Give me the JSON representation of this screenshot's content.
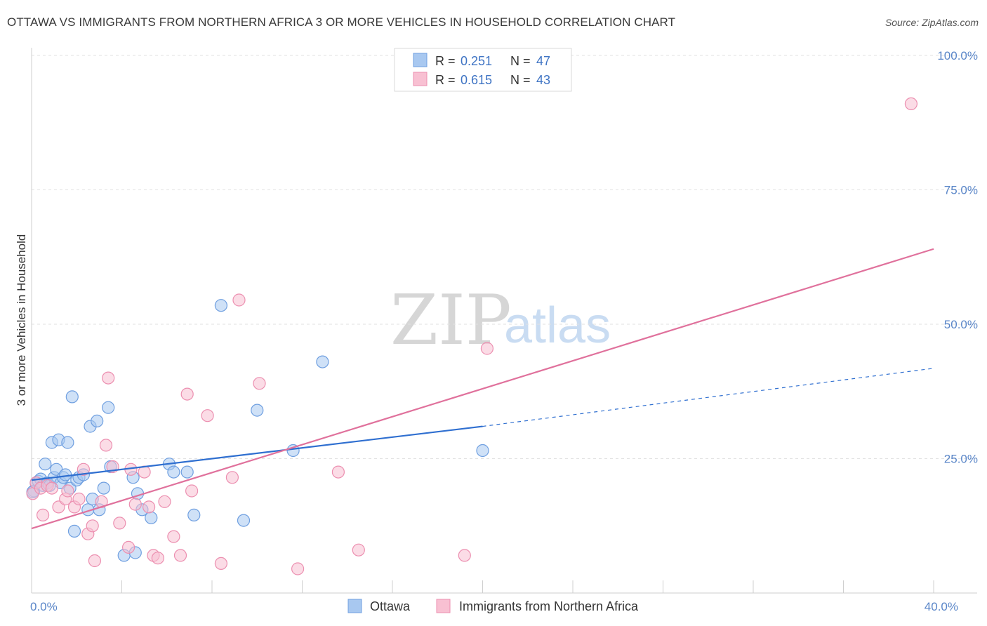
{
  "title": "OTTAWA VS IMMIGRANTS FROM NORTHERN AFRICA 3 OR MORE VEHICLES IN HOUSEHOLD CORRELATION CHART",
  "source": "Source: ZipAtlas.com",
  "watermark": {
    "zip": "ZIP",
    "atlas": "atlas"
  },
  "legend": {
    "r_label": "R =",
    "n_label": "N =",
    "items": [
      {
        "r": "0.251",
        "n": "47",
        "color": "#a8c8f0",
        "stroke": "#6f9fe0"
      },
      {
        "r": "0.615",
        "n": "43",
        "color": "#f8c0d2",
        "stroke": "#ec8fb0"
      }
    ]
  },
  "bottom_legend": [
    {
      "label": "Ottawa",
      "color": "#a8c8f0",
      "stroke": "#6f9fe0"
    },
    {
      "label": "Immigrants from Northern Africa",
      "color": "#f8c0d2",
      "stroke": "#ec8fb0"
    }
  ],
  "chart_data": {
    "type": "scatter",
    "title": "OTTAWA VS IMMIGRANTS FROM NORTHERN AFRICA 3 OR MORE VEHICLES IN HOUSEHOLD CORRELATION CHART",
    "xlabel": "",
    "ylabel": "3 or more Vehicles in Household",
    "xlim": [
      0,
      40
    ],
    "ylim": [
      0,
      100
    ],
    "x_tick_labels": [
      {
        "value": 0,
        "label": "0.0%"
      },
      {
        "value": 40,
        "label": "40.0%"
      }
    ],
    "y_tick_labels": [
      {
        "value": 25,
        "label": "25.0%"
      },
      {
        "value": 50,
        "label": "50.0%"
      },
      {
        "value": 75,
        "label": "75.0%"
      },
      {
        "value": 100,
        "label": "100.0%"
      }
    ],
    "series": [
      {
        "name": "Ottawa",
        "fill": "#a8c8f0",
        "stroke": "#6f9fe0",
        "line_color": "#2f6fd0",
        "trend": {
          "x0": 0,
          "y0": 21.0,
          "x1": 20,
          "y1": 31.0,
          "dash_to_x": 40,
          "dash_to_y": 41.8
        },
        "points": [
          [
            0.1,
            19.0
          ],
          [
            0.2,
            20.5
          ],
          [
            0.3,
            20.8
          ],
          [
            0.4,
            21.2
          ],
          [
            0.5,
            20.0
          ],
          [
            0.6,
            24.0
          ],
          [
            0.7,
            20.5
          ],
          [
            0.8,
            20.0
          ],
          [
            0.9,
            28.0
          ],
          [
            1.0,
            21.5
          ],
          [
            1.1,
            23.0
          ],
          [
            1.2,
            28.5
          ],
          [
            1.3,
            20.5
          ],
          [
            1.4,
            21.5
          ],
          [
            1.5,
            22.0
          ],
          [
            1.6,
            28.0
          ],
          [
            1.7,
            19.5
          ],
          [
            1.8,
            36.5
          ],
          [
            1.9,
            11.5
          ],
          [
            2.0,
            21.0
          ],
          [
            2.1,
            21.5
          ],
          [
            2.3,
            22.0
          ],
          [
            2.5,
            15.5
          ],
          [
            2.6,
            31.0
          ],
          [
            2.7,
            17.5
          ],
          [
            2.9,
            32.0
          ],
          [
            3.0,
            15.5
          ],
          [
            3.2,
            19.5
          ],
          [
            3.4,
            34.5
          ],
          [
            3.5,
            23.5
          ],
          [
            4.1,
            7.0
          ],
          [
            4.5,
            21.5
          ],
          [
            4.6,
            7.5
          ],
          [
            4.7,
            18.5
          ],
          [
            4.9,
            15.5
          ],
          [
            5.3,
            14.0
          ],
          [
            6.1,
            24.0
          ],
          [
            6.3,
            22.5
          ],
          [
            6.9,
            22.5
          ],
          [
            7.2,
            14.5
          ],
          [
            8.4,
            53.5
          ],
          [
            9.4,
            13.5
          ],
          [
            10.0,
            34.0
          ],
          [
            11.6,
            26.5
          ],
          [
            12.9,
            43.0
          ],
          [
            20.0,
            26.5
          ],
          [
            0.05,
            18.8
          ]
        ]
      },
      {
        "name": "Immigrants from Northern Africa",
        "fill": "#f8c0d2",
        "stroke": "#ec8fb0",
        "line_color": "#e0719c",
        "trend": {
          "x0": 0,
          "y0": 12.0,
          "x1": 40,
          "y1": 64.0
        },
        "points": [
          [
            0.05,
            18.5
          ],
          [
            0.2,
            20.5
          ],
          [
            0.4,
            19.5
          ],
          [
            0.5,
            14.5
          ],
          [
            0.7,
            20.0
          ],
          [
            0.9,
            19.5
          ],
          [
            1.2,
            16.0
          ],
          [
            1.5,
            17.5
          ],
          [
            1.6,
            19.0
          ],
          [
            1.9,
            16.0
          ],
          [
            2.1,
            17.5
          ],
          [
            2.3,
            23.0
          ],
          [
            2.5,
            11.0
          ],
          [
            2.7,
            12.5
          ],
          [
            2.8,
            6.0
          ],
          [
            3.1,
            17.0
          ],
          [
            3.3,
            27.5
          ],
          [
            3.4,
            40.0
          ],
          [
            3.6,
            23.5
          ],
          [
            3.9,
            13.0
          ],
          [
            4.3,
            8.5
          ],
          [
            4.4,
            23.0
          ],
          [
            4.6,
            16.5
          ],
          [
            5.0,
            22.5
          ],
          [
            5.2,
            16.0
          ],
          [
            5.4,
            7.0
          ],
          [
            5.6,
            6.5
          ],
          [
            5.9,
            17.0
          ],
          [
            6.3,
            10.5
          ],
          [
            6.6,
            7.0
          ],
          [
            6.9,
            37.0
          ],
          [
            7.1,
            19.0
          ],
          [
            7.8,
            33.0
          ],
          [
            8.4,
            5.5
          ],
          [
            8.9,
            21.5
          ],
          [
            9.2,
            54.5
          ],
          [
            10.1,
            39.0
          ],
          [
            11.8,
            4.5
          ],
          [
            13.6,
            22.5
          ],
          [
            14.5,
            8.0
          ],
          [
            19.2,
            7.0
          ],
          [
            20.2,
            45.5
          ],
          [
            39.0,
            91.0
          ]
        ]
      }
    ]
  }
}
